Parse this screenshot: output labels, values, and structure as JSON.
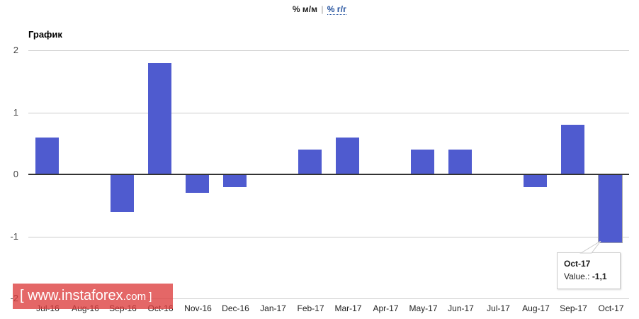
{
  "toggle": {
    "active": "% м/м",
    "separator": "|",
    "inactive": "% г/г"
  },
  "chart_data": {
    "type": "bar",
    "title": "График",
    "categories": [
      "Jul-16",
      "Aug-16",
      "Sep-16",
      "Oct-16",
      "Nov-16",
      "Dec-16",
      "Jan-17",
      "Feb-17",
      "Mar-17",
      "Apr-17",
      "May-17",
      "Jun-17",
      "Jul-17",
      "Aug-17",
      "Sep-17",
      "Oct-17"
    ],
    "values": [
      0.6,
      0,
      -0.6,
      1.8,
      -0.3,
      -0.2,
      0,
      0.4,
      0.6,
      0,
      0.4,
      0.4,
      0,
      -0.2,
      0.8,
      -1.1
    ],
    "ylim": [
      -2,
      2
    ],
    "yticks": [
      "2",
      "1",
      "0",
      "-1",
      "-2"
    ],
    "xlabel": "",
    "ylabel": "",
    "grid": true,
    "bar_color": "#4f5bcf",
    "legend": "none"
  },
  "tooltip": {
    "category": "Oct-17",
    "label": "Value.:",
    "value": "-1,1"
  },
  "watermark": {
    "open": "[",
    "main": " www.instaforex",
    "tld": ".com",
    "close": " ]"
  }
}
